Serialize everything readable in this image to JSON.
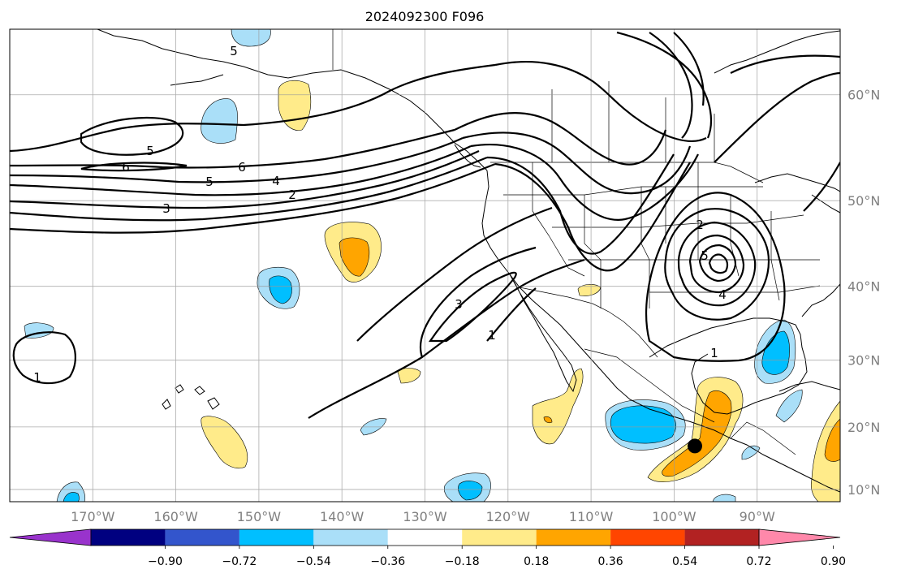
{
  "title": "2024092300 F096",
  "map": {
    "lon_range": [
      -180,
      -80
    ],
    "lat_range": [
      8,
      65
    ],
    "grid": true,
    "lon_labels": [
      "170°W",
      "160°W",
      "150°W",
      "140°W",
      "130°W",
      "120°W",
      "110°W",
      "100°W",
      "90°W"
    ],
    "lat_labels": [
      "60°N",
      "50°N",
      "40°N",
      "30°N",
      "20°N",
      "10°N"
    ],
    "contour_labels": [
      {
        "text": "5"
      },
      {
        "text": "5"
      },
      {
        "text": "6"
      },
      {
        "text": "6"
      },
      {
        "text": "5"
      },
      {
        "text": "4"
      },
      {
        "text": "2"
      },
      {
        "text": "3"
      },
      {
        "text": "3"
      },
      {
        "text": "1"
      },
      {
        "text": "2"
      },
      {
        "text": "5"
      },
      {
        "text": "4"
      },
      {
        "text": "1"
      },
      {
        "text": "1"
      }
    ],
    "marker": {
      "label": "",
      "lon": -97.5,
      "lat": 17
    }
  },
  "colorbar": {
    "extend": "both",
    "colors": [
      "#9933cc",
      "#000080",
      "#3355cc",
      "#00bfff",
      "#aadff8",
      "#ffffff",
      "#ffeb8a",
      "#ffa500",
      "#ff4500",
      "#b22222",
      "#ff88aa"
    ],
    "tick_labels": [
      "−0.90",
      "−0.72",
      "−0.54",
      "−0.36",
      "−0.18",
      "0.18",
      "0.36",
      "0.54",
      "0.72",
      "0.90"
    ]
  }
}
